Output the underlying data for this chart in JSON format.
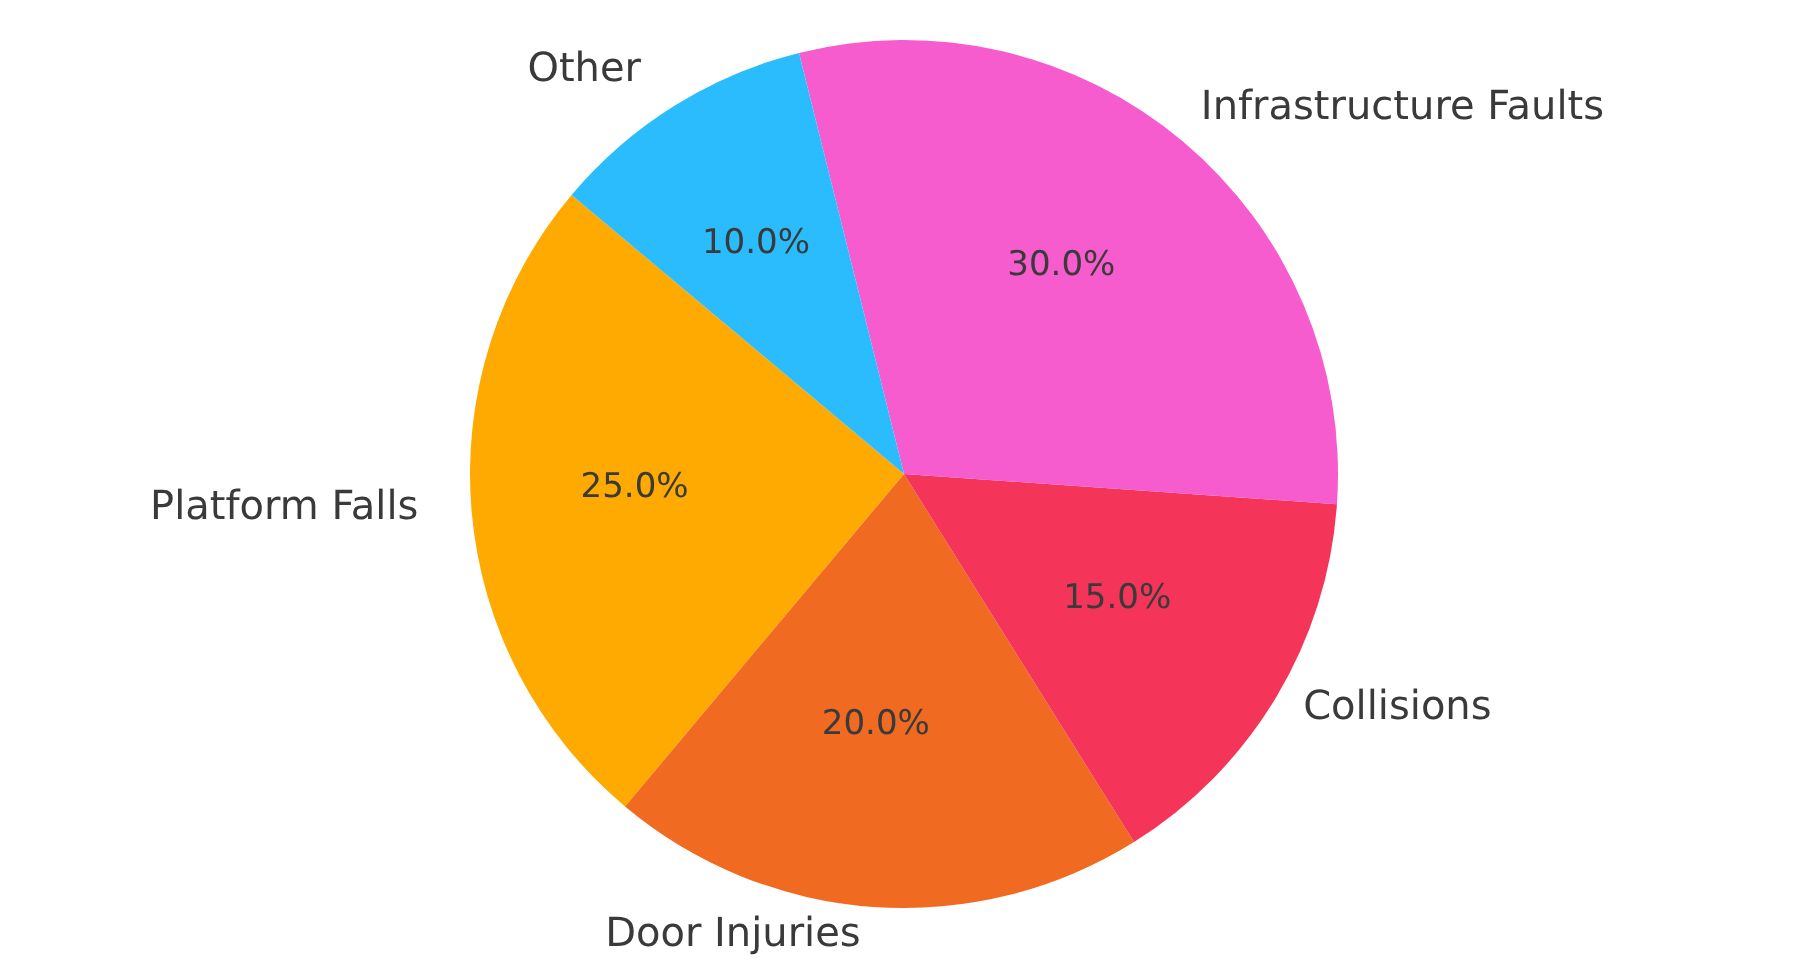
{
  "chart_data": {
    "type": "pie",
    "categories": [
      "Platform Falls",
      "Door Injuries",
      "Collisions",
      "Infrastructure Faults",
      "Other"
    ],
    "values": [
      25,
      20,
      15,
      30,
      10
    ],
    "value_labels": [
      "25.0%",
      "20.0%",
      "15.0%",
      "30.0%",
      "10.0%"
    ],
    "colors": [
      "#ffaa00",
      "#f06a22",
      "#f5345a",
      "#f75cce",
      "#2bbcfd"
    ],
    "legend": false
  }
}
